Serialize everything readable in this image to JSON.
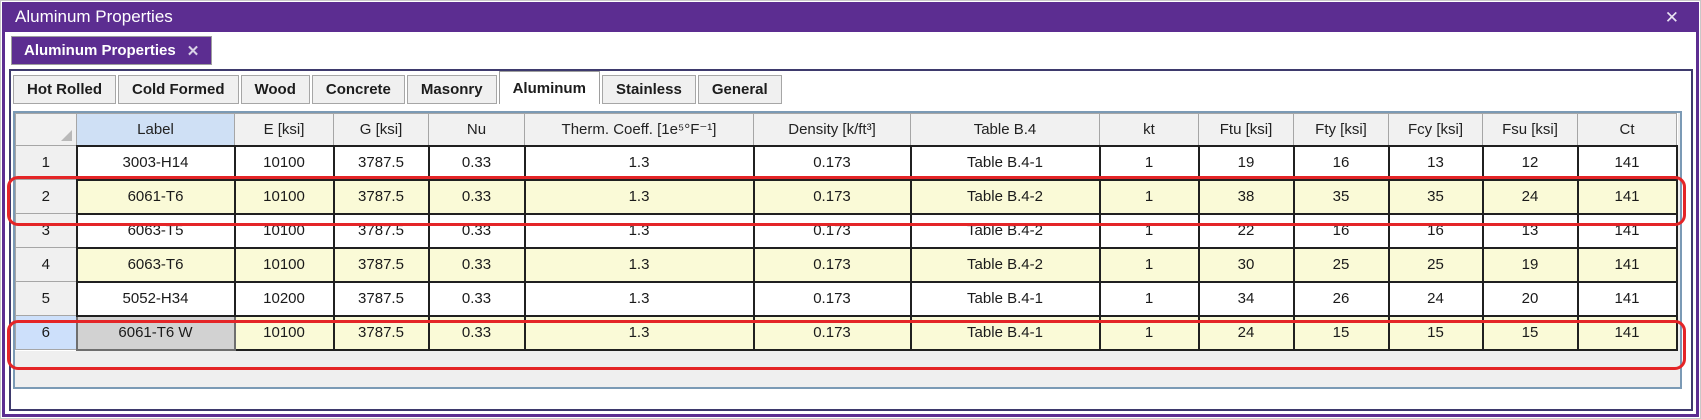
{
  "window": {
    "title": "Aluminum Properties",
    "close_icon": "✕"
  },
  "document_tab": {
    "label": "Aluminum Properties",
    "close_icon": "✕"
  },
  "material_tabs": {
    "active": "Aluminum",
    "items": [
      {
        "label": "Hot Rolled"
      },
      {
        "label": "Cold Formed"
      },
      {
        "label": "Wood"
      },
      {
        "label": "Concrete"
      },
      {
        "label": "Masonry"
      },
      {
        "label": "Aluminum"
      },
      {
        "label": "Stainless"
      },
      {
        "label": "General"
      }
    ]
  },
  "table": {
    "columns": [
      "",
      "Label",
      "E [ksi]",
      "G [ksi]",
      "Nu",
      "Therm. Coeff. [1e⁵°F⁻¹]",
      "Density [k/ft³]",
      "Table B.4",
      "kt",
      "Ftu [ksi]",
      "Fty [ksi]",
      "Fcy [ksi]",
      "Fsu [ksi]",
      "Ct"
    ],
    "rows": [
      {
        "num": "1",
        "label": "3003-H14",
        "e": "10100",
        "g": "3787.5",
        "nu": "0.33",
        "therm": "1.3",
        "density": "0.173",
        "table_b4": "Table B.4-1",
        "kt": "1",
        "ftu": "19",
        "fty": "16",
        "fcy": "13",
        "fsu": "12",
        "ct": "141",
        "shaded": false,
        "selected": false
      },
      {
        "num": "2",
        "label": "6061-T6",
        "e": "10100",
        "g": "3787.5",
        "nu": "0.33",
        "therm": "1.3",
        "density": "0.173",
        "table_b4": "Table B.4-2",
        "kt": "1",
        "ftu": "38",
        "fty": "35",
        "fcy": "35",
        "fsu": "24",
        "ct": "141",
        "shaded": true,
        "selected": false
      },
      {
        "num": "3",
        "label": "6063-T5",
        "e": "10100",
        "g": "3787.5",
        "nu": "0.33",
        "therm": "1.3",
        "density": "0.173",
        "table_b4": "Table B.4-2",
        "kt": "1",
        "ftu": "22",
        "fty": "16",
        "fcy": "16",
        "fsu": "13",
        "ct": "141",
        "shaded": false,
        "selected": false
      },
      {
        "num": "4",
        "label": "6063-T6",
        "e": "10100",
        "g": "3787.5",
        "nu": "0.33",
        "therm": "1.3",
        "density": "0.173",
        "table_b4": "Table B.4-2",
        "kt": "1",
        "ftu": "30",
        "fty": "25",
        "fcy": "25",
        "fsu": "19",
        "ct": "141",
        "shaded": true,
        "selected": false
      },
      {
        "num": "5",
        "label": "5052-H34",
        "e": "10200",
        "g": "3787.5",
        "nu": "0.33",
        "therm": "1.3",
        "density": "0.173",
        "table_b4": "Table B.4-1",
        "kt": "1",
        "ftu": "34",
        "fty": "26",
        "fcy": "24",
        "fsu": "20",
        "ct": "141",
        "shaded": false,
        "selected": false
      },
      {
        "num": "6",
        "label": "6061-T6 W",
        "e": "10100",
        "g": "3787.5",
        "nu": "0.33",
        "therm": "1.3",
        "density": "0.173",
        "table_b4": "Table B.4-1",
        "kt": "1",
        "ftu": "24",
        "fty": "15",
        "fcy": "15",
        "fsu": "15",
        "ct": "141",
        "shaded": true,
        "selected": true
      }
    ]
  },
  "annotations": {
    "circled_row_numbers": [
      2,
      6
    ]
  },
  "colors": {
    "purple": "#5C2D91",
    "container_border": "#3E3A6D",
    "grid_border": "#7B9AB5",
    "row_shade": "#FAFAD7",
    "header_blue": "#CFE0F5",
    "selected_rownum_blue": "#CDE0FB",
    "annotation_red": "#E42527"
  }
}
